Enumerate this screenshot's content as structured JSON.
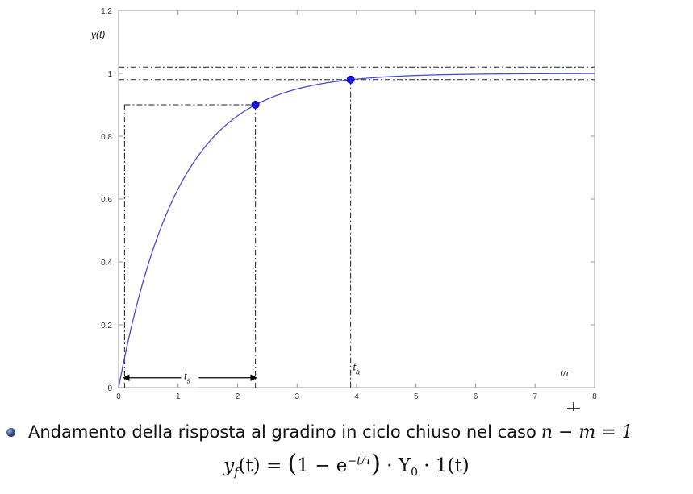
{
  "chart_data": {
    "type": "line",
    "ylabel": "y(t)",
    "xlabel": "t/τ",
    "xlim": [
      0,
      8
    ],
    "ylim": [
      0,
      1.2
    ],
    "x_ticks": [
      "0",
      "1",
      "2",
      "3",
      "4",
      "5",
      "6",
      "7",
      "8"
    ],
    "y_ticks": [
      "0",
      "0.2",
      "0.4",
      "0.6",
      "0.8",
      "1",
      "1.2"
    ],
    "series": [
      {
        "function": "1 - exp(-t)",
        "color": "#4a4ad8"
      }
    ],
    "markers": [
      {
        "x": 2.3,
        "y": 0.9
      },
      {
        "x": 3.9,
        "y": 0.98
      }
    ],
    "reference_lines_y": [
      1.02,
      0.98,
      0.9
    ],
    "reference_lines_x": [
      0.1,
      2.3,
      3.9
    ],
    "annotations": {
      "ts": {
        "base": "t",
        "sub": "s",
        "from_x": 0.1,
        "to_x": 2.3
      },
      "ta": {
        "base": "t",
        "sub": "a",
        "at_x": 3.9
      }
    },
    "grid": false
  },
  "bullet": {
    "text": "Andamento della risposta al gradino in ciclo chiuso nel caso",
    "math": "n − m = 1"
  },
  "formula": {
    "lhs": "y",
    "lhs_sub": "f",
    "arg": "(t) = ",
    "paren_open": "(",
    "one_minus": "1 − e",
    "exponent": "−t/τ",
    "paren_close": ")",
    "rest": " · Y",
    "rest_sub": "0",
    "tail": " · 1(t)"
  }
}
